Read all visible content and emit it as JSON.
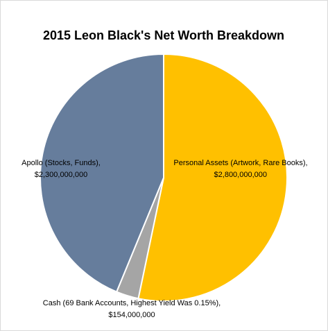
{
  "chart_data": {
    "type": "pie",
    "title": "2015 Leon Black's Net Worth Breakdown",
    "categories": [
      "Personal Assets (Artwork, Rare Books)",
      "Cash (69 Bank Accounts, Highest Yield Was 0.15%)",
      "Apollo (Stocks, Funds)"
    ],
    "values": [
      2800000000,
      154000000,
      2300000000
    ],
    "value_labels": [
      "$2,800,000,000",
      "$154,000,000",
      "$2,300,000,000"
    ],
    "label_separator": ",",
    "colors": [
      "#ffc000",
      "#a5a5a5",
      "#667d9c"
    ]
  }
}
